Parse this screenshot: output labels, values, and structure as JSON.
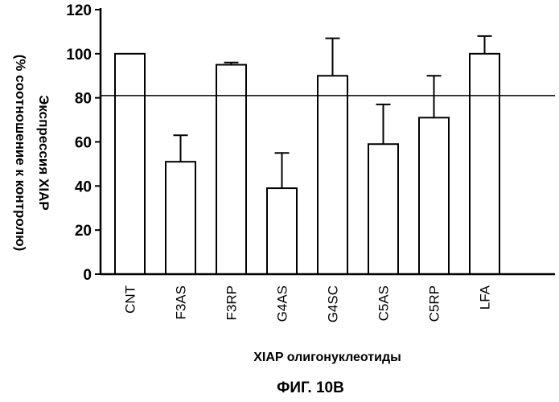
{
  "chart_data": {
    "type": "bar",
    "categories": [
      "CNT",
      "F3AS",
      "F3RP",
      "G4AS",
      "G4SC",
      "C5AS",
      "C5RP",
      "LFA"
    ],
    "values": [
      100,
      51,
      95,
      39,
      90,
      59,
      71,
      100
    ],
    "error_bars": [
      0,
      12,
      1,
      16,
      17,
      18,
      19,
      8
    ],
    "ylim": [
      0,
      120
    ],
    "yticks": [
      "0",
      "20",
      "40",
      "60",
      "80",
      "100",
      "120"
    ],
    "ylabel_line1": "Экспрессия XIAP",
    "ylabel_line2": "(% соотношение к контролю)",
    "xlabel": "XIAP олигонуклеотиды",
    "reference_line": 81,
    "grid": false,
    "legend": "none",
    "colors": {
      "bar_fill": "#ffffff",
      "bar_stroke": "#000000",
      "axis": "#000000"
    }
  },
  "caption": "ФИГ. 10B"
}
